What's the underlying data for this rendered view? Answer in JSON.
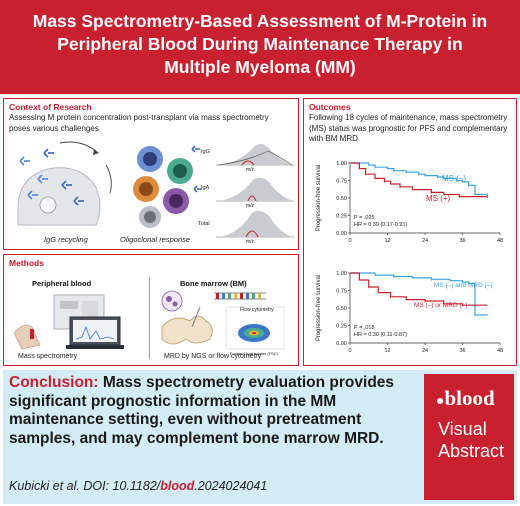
{
  "title": {
    "line1": "Mass Spectrometry-Based Assessment of M-Protein in",
    "line2": "Peripheral Blood During Maintenance Therapy in",
    "line3": "Multiple Myeloma (MM)"
  },
  "context": {
    "heading": "Context of Research",
    "text": "Assessing M protein concentration post-transplant via mass spectrometry poses various challenges",
    "igg_recycling": "IgG recycling",
    "oligoclonal": "Oligoclonal response",
    "spectra_labels": [
      "IgG",
      "IgA",
      "Total"
    ],
    "mz_label": "m/z"
  },
  "outcomes": {
    "heading": "Outcomes",
    "text": "Following 18 cycles of maintenance, mass spectrometry (MS) status was prognostic for PFS and complementary with BM MRD",
    "ylabel": "Progression-free survival",
    "chart1": {
      "series_neg": "MS (–)",
      "series_pos": "MS (+)",
      "p": "P = .025",
      "hr": "HR = 0.39 (0.17-0.91)"
    },
    "chart2": {
      "series_neg": "MS (–) and MRD (–)",
      "series_pos": "MS (–) or MRD (–)",
      "p": "P = .018",
      "hr": "HR = 0.30 (0.11-0.87)"
    }
  },
  "chart_data": [
    {
      "type": "line",
      "ylabel": "Progression-free survival",
      "x_ticks": [
        "0",
        "12",
        "24",
        "36",
        "48"
      ],
      "y_ticks": [
        "0.00",
        "0.25",
        "0.50",
        "0.75",
        "1.00"
      ],
      "xlim": [
        0,
        48
      ],
      "ylim": [
        0,
        1
      ],
      "series": [
        {
          "name": "MS (–)",
          "color": "#3aa3e0",
          "x": [
            0,
            6,
            8,
            12,
            14,
            18,
            22,
            24,
            28,
            30,
            34,
            36,
            38,
            40,
            44
          ],
          "y": [
            1.0,
            0.97,
            0.94,
            0.92,
            0.89,
            0.87,
            0.84,
            0.82,
            0.8,
            0.78,
            0.75,
            0.73,
            0.68,
            0.55,
            0.55
          ]
        },
        {
          "name": "MS (+)",
          "color": "#c8202f",
          "x": [
            0,
            3,
            5,
            8,
            11,
            13,
            16,
            20,
            26,
            30,
            35,
            40,
            44
          ],
          "y": [
            1.0,
            0.92,
            0.84,
            0.78,
            0.74,
            0.7,
            0.66,
            0.62,
            0.58,
            0.55,
            0.52,
            0.52,
            0.52
          ]
        }
      ]
    },
    {
      "type": "line",
      "ylabel": "Progression-free survival",
      "x_ticks": [
        "0",
        "12",
        "24",
        "36",
        "48"
      ],
      "y_ticks": [
        "0.00",
        "0.25",
        "0.50",
        "0.75",
        "1.00"
      ],
      "xlim": [
        0,
        48
      ],
      "ylim": [
        0,
        1
      ],
      "series": [
        {
          "name": "MS (–) and MRD (–)",
          "color": "#3aa3e0",
          "x": [
            0,
            8,
            14,
            20,
            26,
            32,
            36,
            38,
            40,
            44
          ],
          "y": [
            1.0,
            0.97,
            0.95,
            0.93,
            0.91,
            0.89,
            0.87,
            0.85,
            0.4,
            0.4
          ]
        },
        {
          "name": "MS (–) or MRD (–)",
          "color": "#c8202f",
          "x": [
            0,
            3,
            6,
            9,
            13,
            18,
            24,
            30,
            36,
            44
          ],
          "y": [
            1.0,
            0.9,
            0.8,
            0.72,
            0.66,
            0.62,
            0.6,
            0.56,
            0.54,
            0.54
          ]
        }
      ]
    }
  ],
  "methods": {
    "heading": "Methods",
    "pb_title": "Peripheral blood",
    "bm_title": "Bone marrow (BM)",
    "ms_caption": "Mass spectrometry",
    "mrd_caption": "MRD by NGS or flow cytometry",
    "flow_label": "Flow cytometry",
    "flow_y": "Side light scatter (SSC)",
    "flow_x": "Forward light scatter (FSC)"
  },
  "conclusion": {
    "lead": "Conclusion:",
    "body": " Mass spectrometry evaluation provides significant prognostic information in the MM maintenance setting, even without pretreatment samples, and may complement bone marrow MRD.",
    "cite_pre": "Kubicki et al. DOI: 10.1182/",
    "cite_bold": "blood",
    "cite_post": ".2024024041"
  },
  "badge": {
    "logo": "blood",
    "line1": "Visual",
    "line2": "Abstract"
  },
  "colors": {
    "brand_red": "#c8202f",
    "light_blue": "#d3ecf6",
    "series_blue": "#3aa3e0"
  }
}
